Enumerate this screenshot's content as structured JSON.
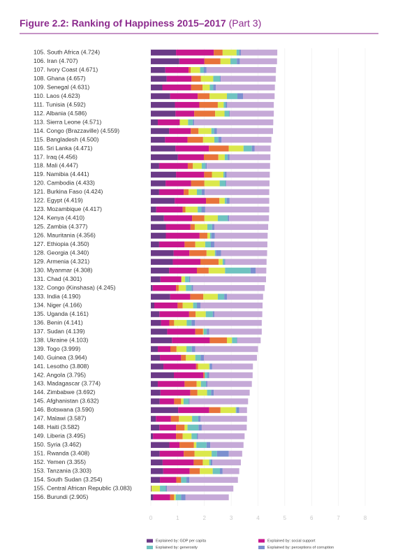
{
  "chart_data": {
    "type": "stacked-bar-horizontal",
    "title": "Figure 2.2: Ranking of Happiness 2015–2017",
    "subtitle": "(Part 3)",
    "categories": [
      "105. South Africa (4.724)",
      "106. Iran (4.707)",
      "107. Ivory Coast (4.671)",
      "108. Ghana (4.657)",
      "109. Senegal (4.631)",
      "110. Laos (4.623)",
      "111. Tunisia (4.592)",
      "112. Albania (4.586)",
      "113. Sierra Leone (4.571)",
      "114. Congo (Brazzaville) (4.559)",
      "115. Bangladesh (4.500)",
      "116. Sri Lanka (4.471)",
      "117. Iraq (4.456)",
      "118. Mali (4.447)",
      "119. Namibia (4.441)",
      "120. Cambodia (4.433)",
      "121. Burkina Faso (4.424)",
      "122. Egypt (4.419)",
      "123. Mozambique (4.417)",
      "124. Kenya (4.410)",
      "125. Zambia (4.377)",
      "126. Mauritania (4.356)",
      "127. Ethiopia (4.350)",
      "128. Georgia (4.340)",
      "129. Armenia (4.321)",
      "130. Myanmar (4.308)",
      "131. Chad (4.301)",
      "132. Congo (Kinshasa) (4.245)",
      "133. India (4.190)",
      "134. Niger (4.166)",
      "135. Uganda (4.161)",
      "136. Benin (4.141)",
      "137. Sudan (4.139)",
      "138. Ukraine (4.103)",
      "139. Togo (3.999)",
      "140. Guinea (3.964)",
      "141. Lesotho (3.808)",
      "142. Angola (3.795)",
      "143. Madagascar (3.774)",
      "144. Zimbabwe (3.692)",
      "145. Afghanistan (3.632)",
      "146. Botswana (3.590)",
      "147. Malawi (3.587)",
      "148. Haiti (3.582)",
      "149. Liberia (3.495)",
      "150. Syria (3.462)",
      "151. Rwanda (3.408)",
      "152. Yemen (3.355)",
      "153. Tanzania (3.303)",
      "154. South Sudan (3.254)",
      "155. Central African Republic (3.083)",
      "156. Burundi (2.905)"
    ],
    "series": [
      {
        "name": "Explained by: GDP per capita",
        "color": "#6b3a87",
        "values": [
          0.94,
          1.06,
          0.54,
          0.59,
          0.43,
          0.72,
          0.9,
          0.92,
          0.26,
          0.68,
          0.53,
          0.92,
          1.01,
          0.31,
          0.94,
          0.55,
          0.31,
          0.89,
          0.2,
          0.49,
          0.56,
          0.56,
          0.31,
          0.85,
          0.82,
          0.68,
          0.36,
          0.07,
          0.72,
          0.13,
          0.32,
          0.38,
          0.61,
          0.79,
          0.26,
          0.34,
          0.47,
          0.86,
          0.26,
          0.36,
          0.33,
          1.02,
          0.19,
          0.32,
          0.08,
          0.69,
          0.33,
          0.44,
          0.46,
          0.34,
          0.02,
          0.09
        ]
      },
      {
        "name": "Explained by: social support",
        "color": "#c8168e",
        "values": [
          1.41,
          0.94,
          0.87,
          0.93,
          1.07,
          1.03,
          0.91,
          0.7,
          0.82,
          0.81,
          0.84,
          1.25,
          0.97,
          1.07,
          1.05,
          0.95,
          0.92,
          1.17,
          0.99,
          1.05,
          0.92,
          1.26,
          0.95,
          0.59,
          1.03,
          1.04,
          0.78,
          0.87,
          0.75,
          0.87,
          1.11,
          0.31,
          1.05,
          1.41,
          0.47,
          0.79,
          1.22,
          1.1,
          1.0,
          1.11,
          0.54,
          1.16,
          0.56,
          0.62,
          0.86,
          0.38,
          0.9,
          1.16,
          0.99,
          0.61,
          0,
          0.63
        ]
      },
      {
        "color": "#e8733a",
        "values": [
          0.33,
          0.6,
          0.08,
          0.35,
          0.43,
          0.44,
          0.69,
          0.78,
          0,
          0.29,
          0.58,
          0.74,
          0.54,
          0.19,
          0.29,
          0.5,
          0.18,
          0.5,
          0.1,
          0.46,
          0.16,
          0.29,
          0.4,
          0.64,
          0.68,
          0.44,
          0,
          0.1,
          0.49,
          0.19,
          0.24,
          0.18,
          0.29,
          0.64,
          0.23,
          0.18,
          0.07,
          0.05,
          0.45,
          0.27,
          0.26,
          0.42,
          0.3,
          0.32,
          0.25,
          0.54,
          0.4,
          0.34,
          0.38,
          0.18,
          0.01,
          0.15
        ]
      },
      {
        "color": "#dbe84c",
        "values": [
          0.52,
          0.37,
          0.35,
          0.46,
          0.27,
          0.65,
          0.22,
          0.35,
          0.31,
          0.48,
          0.42,
          0.55,
          0.24,
          0.33,
          0.43,
          0.57,
          0.31,
          0.2,
          0.46,
          0.5,
          0.47,
          0.1,
          0.37,
          0.31,
          0.15,
          0.61,
          0.14,
          0.27,
          0.54,
          0.39,
          0.38,
          0.47,
          0.02,
          0.19,
          0.37,
          0.35,
          0.42,
          0,
          0.16,
          0.36,
          0.09,
          0.57,
          0.49,
          0.11,
          0.33,
          0.09,
          0.64,
          0.24,
          0.48,
          0,
          0.31,
          0.06
        ]
      },
      {
        "name": "Explained by: generosity",
        "color": "#6fc3c0",
        "values": [
          0.1,
          0.24,
          0.14,
          0.25,
          0.13,
          0.39,
          0.07,
          0.17,
          0.18,
          0.11,
          0.15,
          0.31,
          0.11,
          0.14,
          0.05,
          0.22,
          0.18,
          0.07,
          0.14,
          0.37,
          0.18,
          0.05,
          0.21,
          0.04,
          0.06,
          0.95,
          0.15,
          0.21,
          0.24,
          0.14,
          0.26,
          0.18,
          0.12,
          0.18,
          0.2,
          0.2,
          0.03,
          0.1,
          0.19,
          0.15,
          0.19,
          0.03,
          0.23,
          0.41,
          0.2,
          0.38,
          0.2,
          0.06,
          0.27,
          0.2,
          0.22,
          0.2
        ]
      },
      {
        "name": "Explained by: perceptions of corruption",
        "color": "#7b8fcf",
        "values": [
          0.06,
          0.11,
          0.1,
          0.03,
          0.1,
          0.21,
          0.06,
          0.03,
          0.05,
          0.1,
          0.12,
          0.1,
          0.07,
          0.05,
          0.07,
          0.03,
          0.11,
          0.11,
          0.14,
          0.05,
          0.08,
          0.13,
          0.13,
          0.19,
          0.04,
          0.19,
          0.04,
          0.06,
          0.1,
          0.13,
          0.06,
          0.13,
          0.09,
          0.02,
          0.13,
          0.12,
          0.08,
          0.07,
          0.05,
          0.1,
          0.04,
          0.1,
          0.08,
          0.12,
          0.04,
          0.14,
          0.44,
          0.06,
          0.1,
          0.11,
          0.04,
          0.16
        ]
      },
      {
        "color": "#c5a9d7",
        "values": [
          1.36,
          1.39,
          2.59,
          2.05,
          2.2,
          1.18,
          1.74,
          1.64,
          2.95,
          2.09,
          1.86,
          0.6,
          1.52,
          2.36,
          1.61,
          1.61,
          2.41,
          1.48,
          2.39,
          1.49,
          2.01,
          1.97,
          1.98,
          1.72,
          1.54,
          0.4,
          2.83,
          2.67,
          1.35,
          2.32,
          1.79,
          2.49,
          1.96,
          0.87,
          2.34,
          1.98,
          1.52,
          1.62,
          1.66,
          1.34,
          2.18,
          0.29,
          1.74,
          1.68,
          1.74,
          1.24,
          0.5,
          1.06,
          0.62,
          1.81,
          2.48,
          1.62
        ]
      }
    ],
    "xlim": [
      0,
      8
    ],
    "xticks": [
      0,
      1,
      2,
      3,
      4,
      5,
      6,
      7,
      8
    ]
  }
}
